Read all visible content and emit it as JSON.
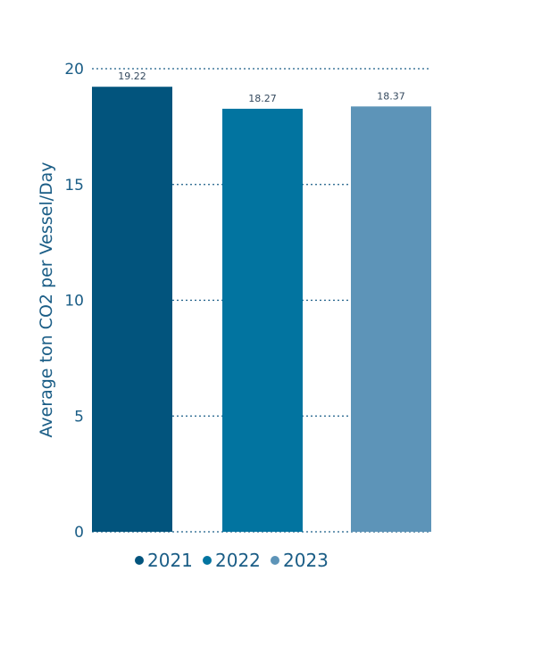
{
  "chart_data": {
    "type": "bar",
    "title": "",
    "xlabel": "",
    "ylabel": "Average ton CO2 per Vessel/Day",
    "ylim": [
      0,
      20
    ],
    "yticks": [
      0,
      5,
      10,
      15,
      20
    ],
    "grid": true,
    "legend_position": "bottom",
    "series": [
      {
        "name": "2021",
        "value": 19.22,
        "label": "19.22",
        "color": "#02547d"
      },
      {
        "name": "2022",
        "value": 18.27,
        "label": "18.27",
        "color": "#0274a0"
      },
      {
        "name": "2023",
        "value": 18.37,
        "label": "18.37",
        "color": "#5d94b8"
      }
    ]
  }
}
